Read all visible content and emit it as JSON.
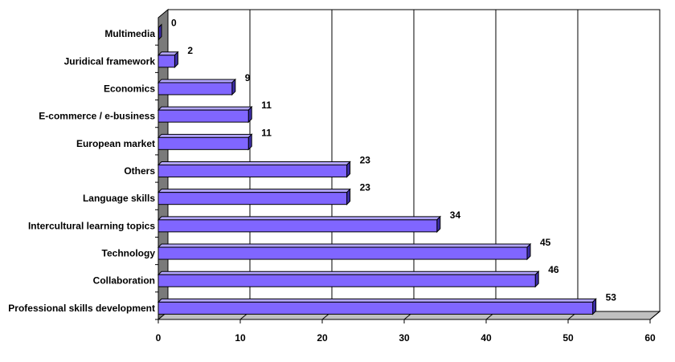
{
  "chart_data": {
    "type": "bar",
    "orientation": "horizontal",
    "style": "3d",
    "categories": [
      "Multimedia",
      "Juridical framework",
      "Economics",
      "E-commerce / e-business",
      "European market",
      "Others",
      "Language skills",
      "Intercultural learning topics",
      "Technology",
      "Collaboration",
      "Professional skills development"
    ],
    "values": [
      0,
      2,
      9,
      11,
      11,
      23,
      23,
      34,
      45,
      46,
      53
    ],
    "value_labels": [
      "0",
      "2",
      "9",
      "11",
      "11",
      "23",
      "23",
      "34",
      "45",
      "46",
      "53"
    ],
    "xlim": [
      0,
      60
    ],
    "xticks": [
      0,
      10,
      20,
      30,
      40,
      50,
      60
    ],
    "xtick_labels": [
      "0",
      "10",
      "20",
      "30",
      "40",
      "50",
      "60"
    ],
    "grid": "vertical",
    "legend": "none",
    "title": "",
    "xlabel": "",
    "ylabel": "",
    "colors": {
      "bar_front": "#8066ff",
      "bar_top": "#b3a6ff",
      "bar_side": "#3d2ea6",
      "wall": "#7a7a7a",
      "floor": "#c0c0c0",
      "gridline": "#000000"
    }
  }
}
